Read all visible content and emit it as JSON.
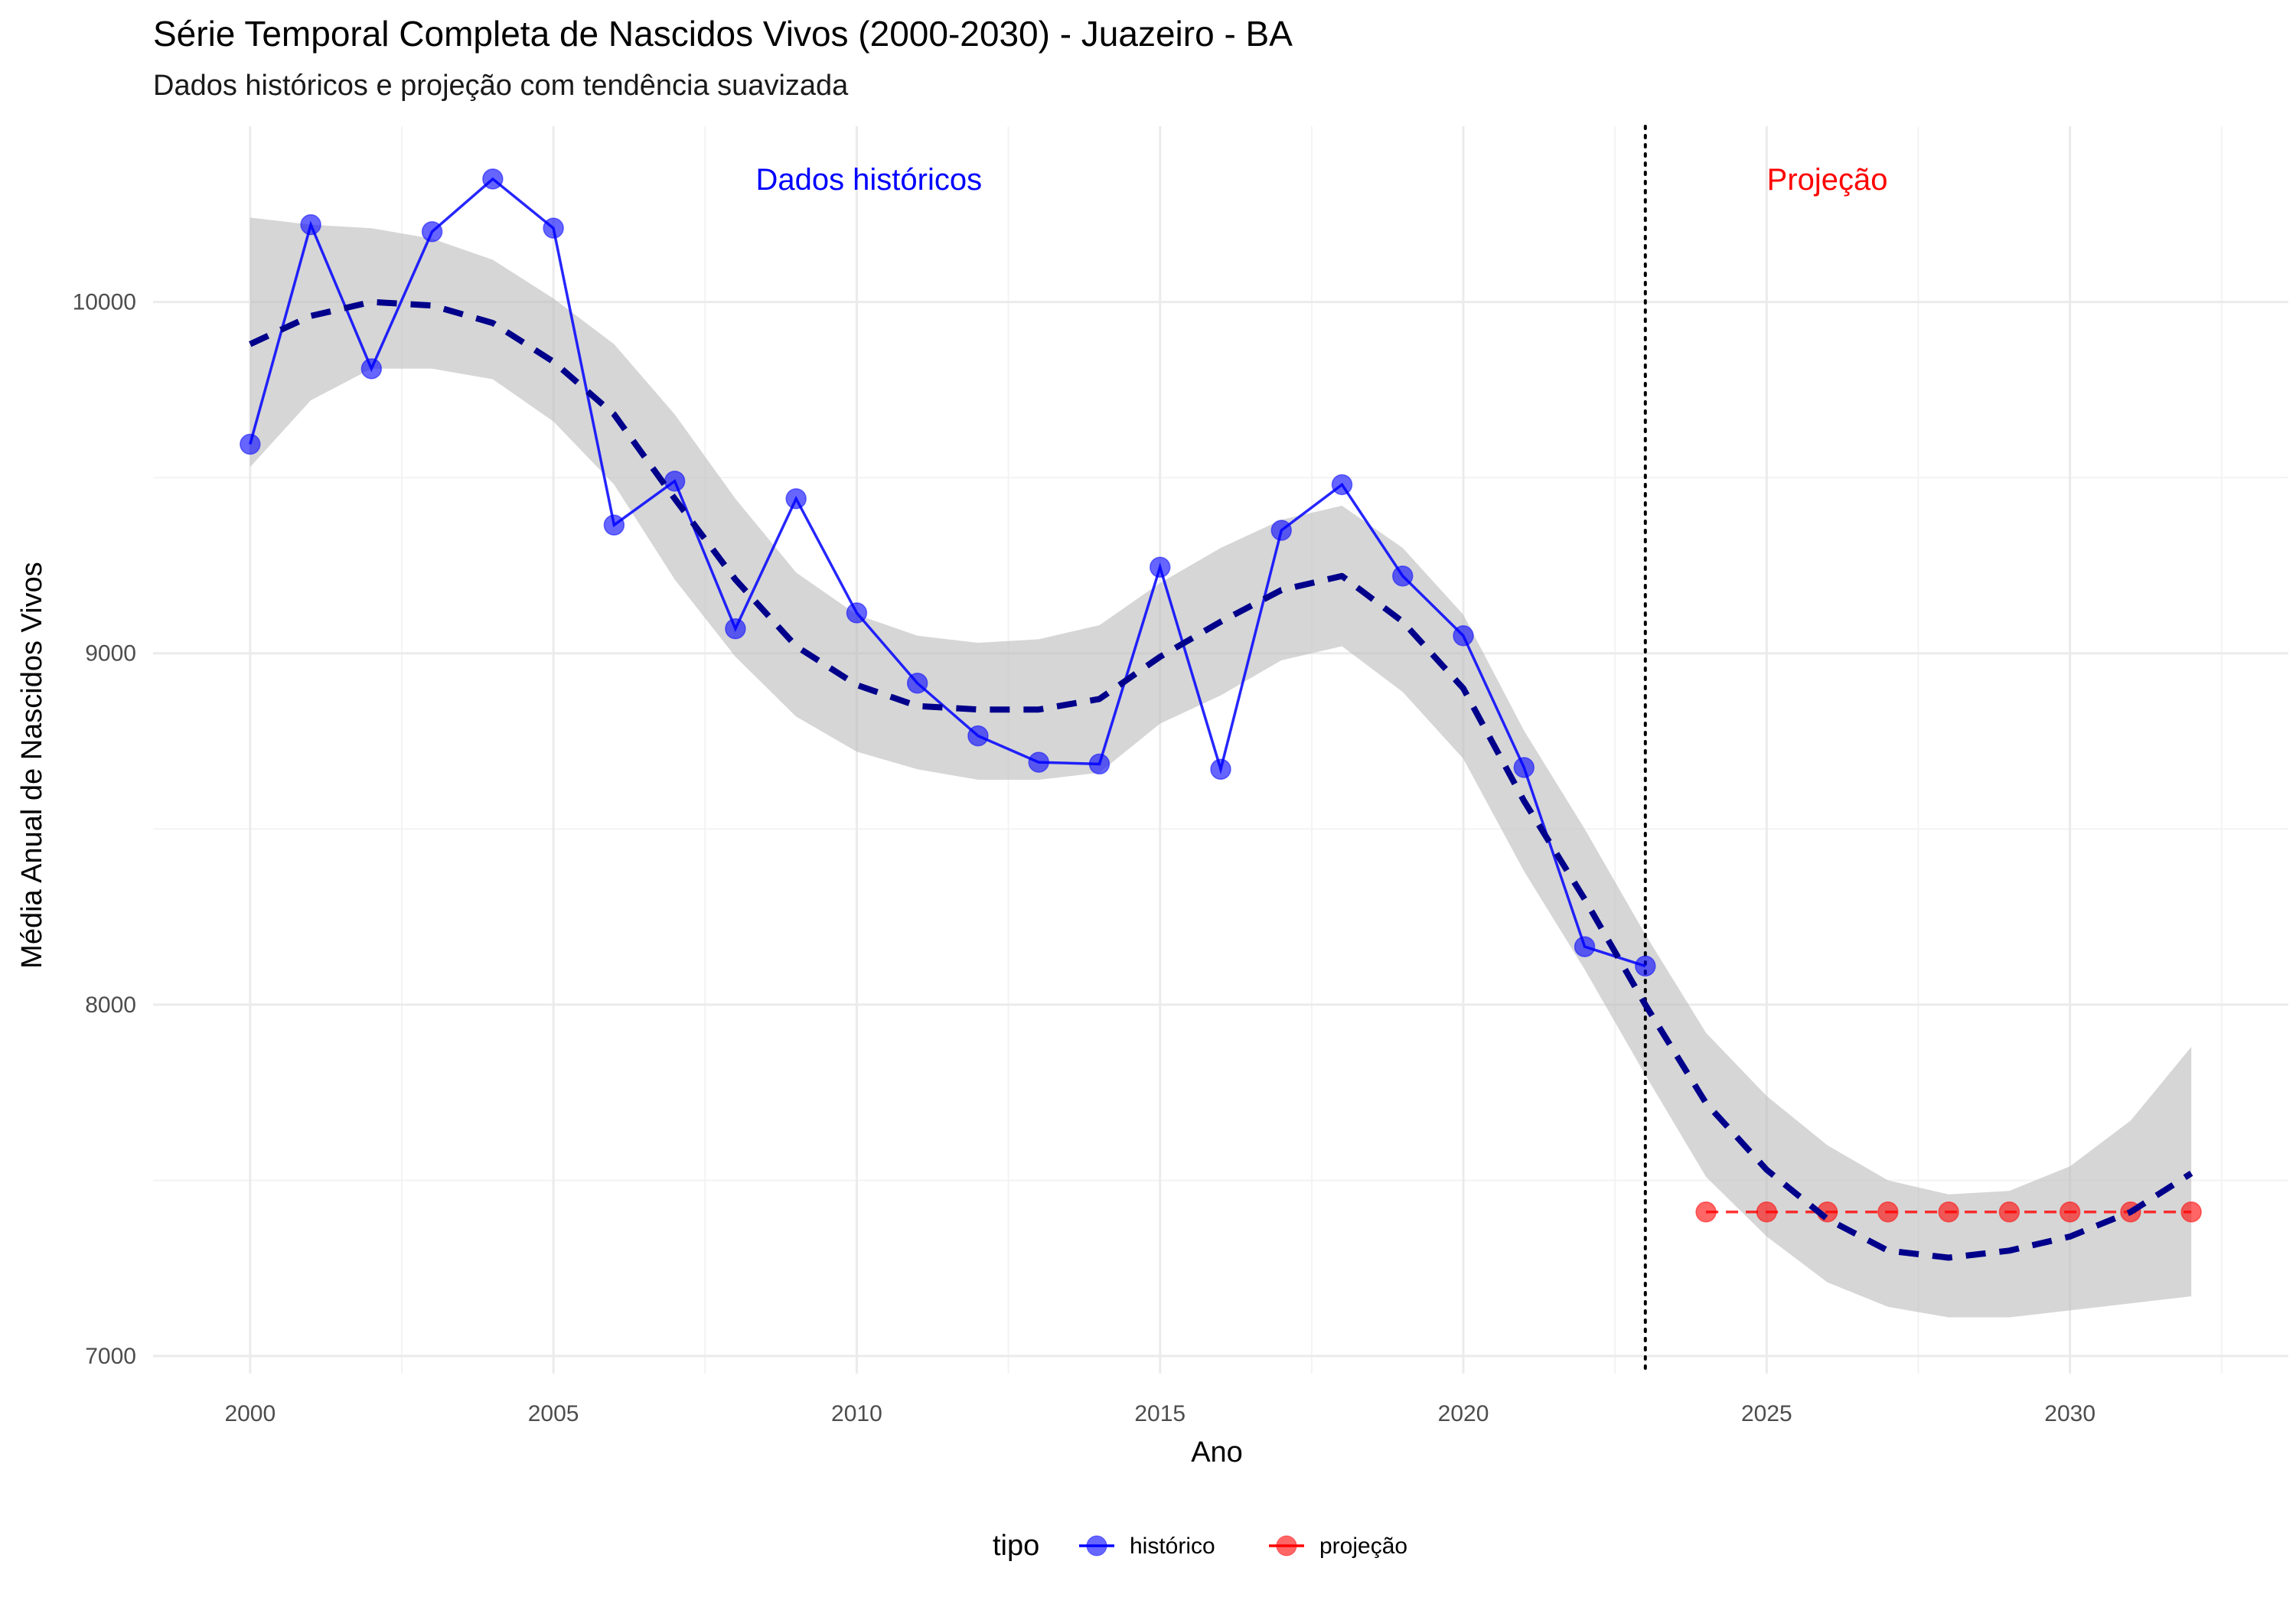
{
  "chart_data": {
    "type": "line",
    "title": "Série Temporal Completa de Nascidos Vivos (2000-2030) -  Juazeiro - BA",
    "subtitle": "Dados históricos e projeção com tendência suavizada",
    "xlabel": "Ano",
    "ylabel": "Média Anual de Nascidos Vivos",
    "xlim": [
      1998.4,
      2033.6
    ],
    "ylim": [
      6950,
      10500
    ],
    "x_ticks": [
      2000,
      2005,
      2010,
      2015,
      2020,
      2025,
      2030
    ],
    "y_ticks": [
      7000,
      8000,
      9000,
      10000
    ],
    "grid": true,
    "cutoff_year": 2023,
    "annotations": [
      {
        "text": "Dados históricos",
        "x": 2010.2,
        "y": 10350,
        "color": "#0000ff"
      },
      {
        "text": "Projeção",
        "x": 2026.0,
        "y": 10350,
        "color": "#ff0000"
      }
    ],
    "series": [
      {
        "name": "histórico",
        "color": "#0000ff",
        "x": [
          2000,
          2001,
          2002,
          2003,
          2004,
          2005,
          2006,
          2007,
          2008,
          2009,
          2010,
          2011,
          2012,
          2013,
          2014,
          2015,
          2016,
          2017,
          2018,
          2019,
          2020,
          2021,
          2022,
          2023
        ],
        "y": [
          9595,
          10220,
          9810,
          10200,
          10350,
          10210,
          9365,
          9490,
          9070,
          9440,
          9115,
          8915,
          8765,
          8690,
          8685,
          9245,
          8670,
          9350,
          9480,
          9220,
          9050,
          8675,
          8165,
          8110
        ]
      },
      {
        "name": "projeção",
        "color": "#ff0000",
        "x": [
          2024,
          2025,
          2026,
          2027,
          2028,
          2029,
          2030,
          2031,
          2032
        ],
        "y": [
          7410,
          7410,
          7410,
          7410,
          7410,
          7410,
          7410,
          7410,
          7410
        ]
      }
    ],
    "trend": {
      "color": "#00008b",
      "x": [
        2000,
        2001,
        2002,
        2003,
        2004,
        2005,
        2006,
        2007,
        2008,
        2009,
        2010,
        2011,
        2012,
        2013,
        2014,
        2015,
        2016,
        2017,
        2018,
        2019,
        2020,
        2021,
        2022,
        2023,
        2024,
        2025,
        2026,
        2027,
        2028,
        2029,
        2030,
        2031,
        2032
      ],
      "y": [
        9880,
        9960,
        10000,
        9990,
        9940,
        9830,
        9680,
        9440,
        9210,
        9020,
        8910,
        8850,
        8840,
        8840,
        8870,
        8990,
        9090,
        9180,
        9220,
        9090,
        8900,
        8580,
        8300,
        8000,
        7720,
        7530,
        7390,
        7300,
        7280,
        7300,
        7340,
        7410,
        7520
      ],
      "lower": [
        9530,
        9720,
        9810,
        9810,
        9780,
        9660,
        9480,
        9210,
        8990,
        8820,
        8720,
        8670,
        8640,
        8640,
        8660,
        8800,
        8880,
        8980,
        9020,
        8890,
        8700,
        8380,
        8100,
        7800,
        7510,
        7340,
        7210,
        7140,
        7110,
        7110,
        7130,
        7150,
        7170
      ],
      "upper": [
        10240,
        10220,
        10210,
        10180,
        10120,
        10010,
        9880,
        9680,
        9440,
        9230,
        9110,
        9050,
        9030,
        9040,
        9080,
        9200,
        9300,
        9380,
        9420,
        9300,
        9110,
        8780,
        8500,
        8200,
        7920,
        7740,
        7600,
        7500,
        7460,
        7470,
        7540,
        7670,
        7880
      ]
    },
    "legend": {
      "title": "tipo",
      "position": "bottom",
      "entries": [
        {
          "label": "histórico",
          "color": "#0000ff"
        },
        {
          "label": "projeção",
          "color": "#ff0000"
        }
      ]
    }
  }
}
